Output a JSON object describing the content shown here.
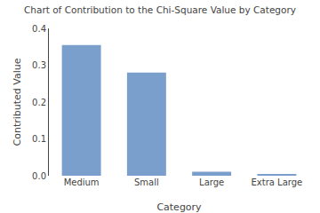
{
  "chart_data": {
    "type": "bar",
    "title": "Chart of Contribution to the Chi-Square Value by Category",
    "categories": [
      "Medium",
      "Small",
      "Large",
      "Extra Large"
    ],
    "values": [
      0.355,
      0.28,
      0.011,
      0.004
    ],
    "color": "#7b9fcc",
    "xlabel": "Category",
    "ylabel": "Contributed Value",
    "ylim": [
      0,
      0.4
    ],
    "yticks": [
      {
        "value": 0.0,
        "label": "0.0"
      },
      0.1,
      0.2,
      0.3,
      0.4
    ],
    "grid": false
  }
}
